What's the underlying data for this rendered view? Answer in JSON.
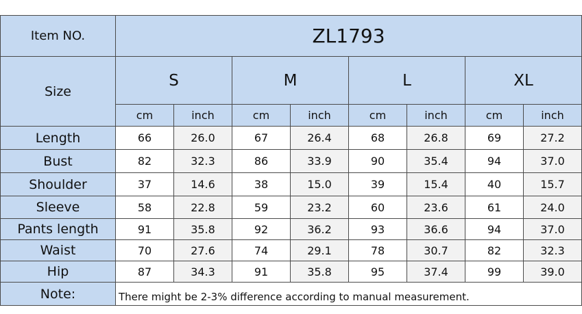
{
  "header": {
    "label": "Item NO.",
    "value": "ZL1793"
  },
  "size_label": "Size",
  "sizes": [
    "S",
    "M",
    "L",
    "XL"
  ],
  "units": [
    "cm",
    "inch"
  ],
  "rows": [
    {
      "label": "Length",
      "values": [
        "66",
        "26.0",
        "67",
        "26.4",
        "68",
        "26.8",
        "69",
        "27.2"
      ]
    },
    {
      "label": "Bust",
      "values": [
        "82",
        "32.3",
        "86",
        "33.9",
        "90",
        "35.4",
        "94",
        "37.0"
      ]
    },
    {
      "label": "Shoulder",
      "values": [
        "37",
        "14.6",
        "38",
        "15.0",
        "39",
        "15.4",
        "40",
        "15.7"
      ]
    },
    {
      "label": "Sleeve",
      "values": [
        "58",
        "22.8",
        "59",
        "23.2",
        "60",
        "23.6",
        "61",
        "24.0"
      ]
    },
    {
      "label": "Pants length",
      "values": [
        "91",
        "35.8",
        "92",
        "36.2",
        "93",
        "36.6",
        "94",
        "37.0"
      ]
    },
    {
      "label": "Waist",
      "values": [
        "70",
        "27.6",
        "74",
        "29.1",
        "78",
        "30.7",
        "82",
        "32.3"
      ]
    },
    {
      "label": "Hip",
      "values": [
        "87",
        "34.3",
        "91",
        "35.8",
        "95",
        "37.4",
        "99",
        "39.0"
      ]
    }
  ],
  "note": {
    "label": "Note:",
    "text": "There might be 2-3% difference according to manual measurement."
  }
}
